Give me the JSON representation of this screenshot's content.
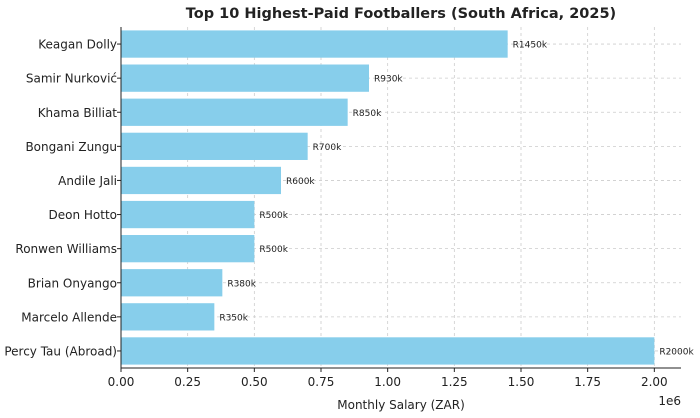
{
  "chart_data": {
    "type": "bar",
    "orientation": "horizontal",
    "title": "Top 10 Highest-Paid Footballers (South Africa, 2025)",
    "xlabel": "Monthly Salary (ZAR)",
    "ylabel": "",
    "x_scale_label": "1e6",
    "xlim": [
      0,
      2100000
    ],
    "xticks": [
      0,
      250000,
      500000,
      750000,
      1000000,
      1250000,
      1500000,
      1750000,
      2000000
    ],
    "xtick_labels": [
      "0.00",
      "0.25",
      "0.50",
      "0.75",
      "1.00",
      "1.25",
      "1.50",
      "1.75",
      "2.00"
    ],
    "grid": true,
    "bar_color": "#87ceeb",
    "categories": [
      "Keagan Dolly",
      "Samir Nurković",
      "Khama Billiat",
      "Bongani Zungu",
      "Andile Jali",
      "Deon Hotto",
      "Ronwen Williams",
      "Brian Onyango",
      "Marcelo Allende",
      "Percy Tau (Abroad)"
    ],
    "values": [
      1450000,
      930000,
      850000,
      700000,
      600000,
      500000,
      500000,
      380000,
      350000,
      2000000
    ],
    "data_labels": [
      "R1450k",
      "R930k",
      "R850k",
      "R700k",
      "R600k",
      "R500k",
      "R500k",
      "R380k",
      "R350k",
      "R2000k"
    ]
  }
}
